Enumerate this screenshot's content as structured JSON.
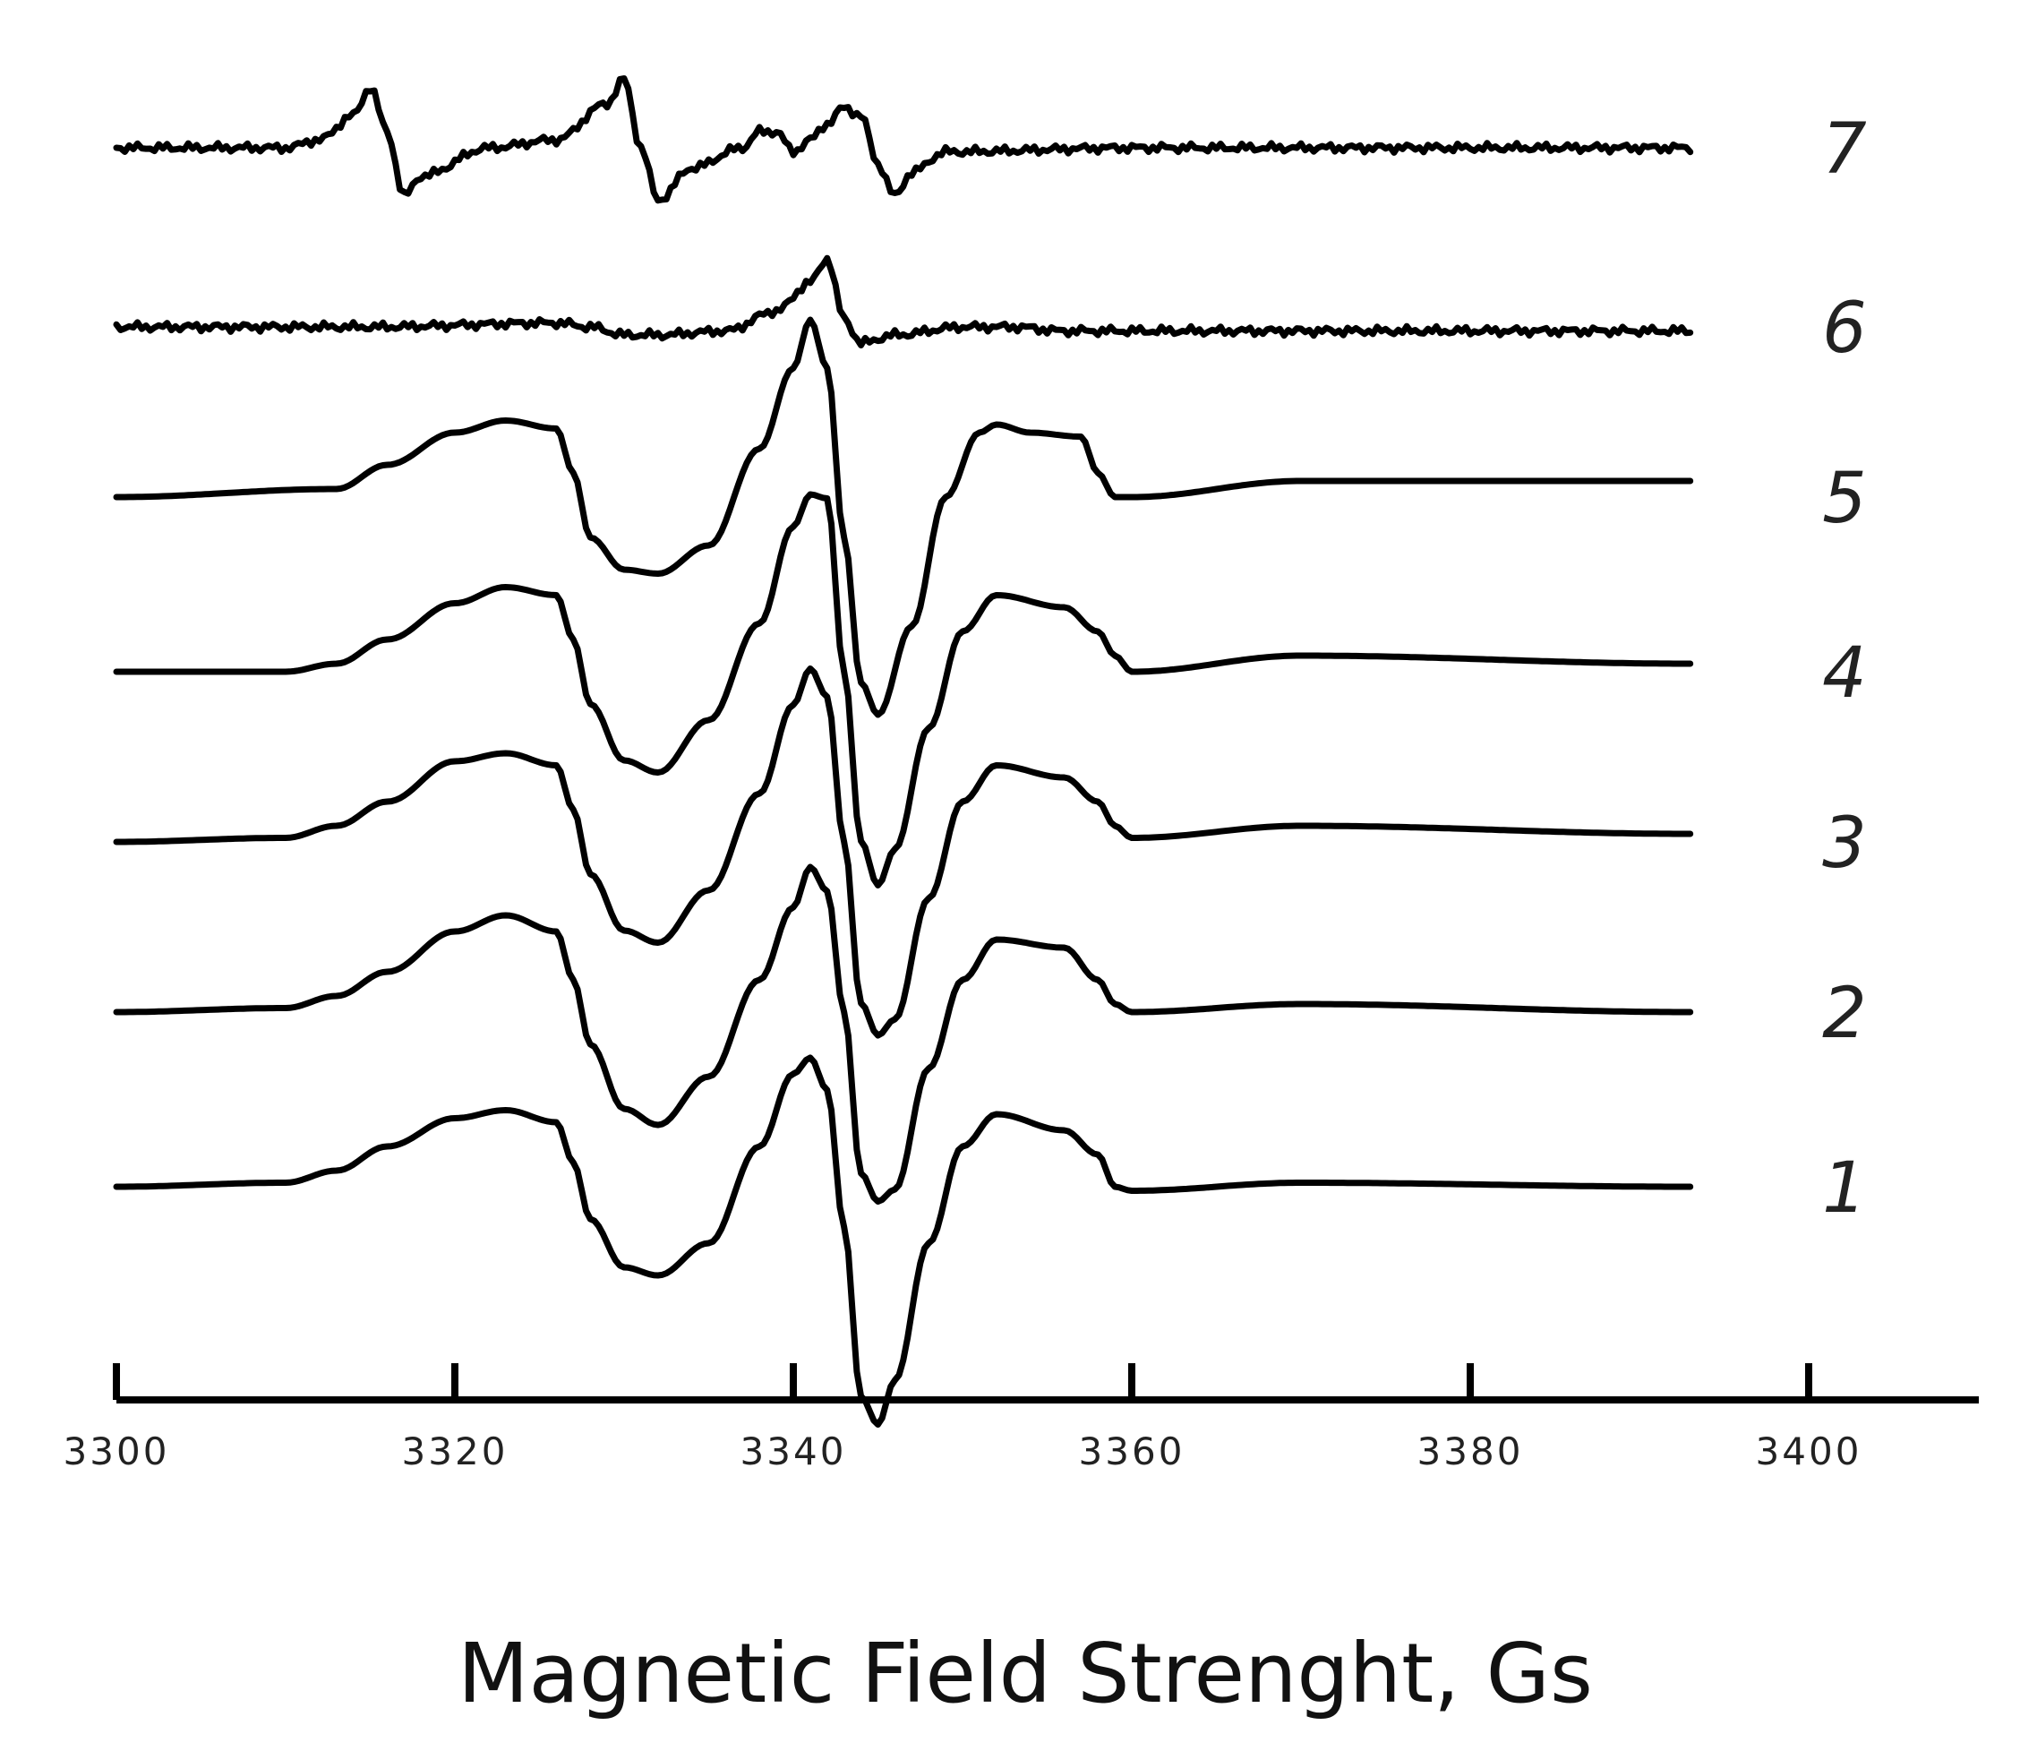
{
  "chart_data": {
    "type": "line",
    "title": "",
    "xlabel": "Magnetic Field Strenght, Gs",
    "ylabel": "",
    "xlim": [
      3300,
      3410
    ],
    "x_ticks": [
      3300,
      3320,
      3340,
      3360,
      3380,
      3400
    ],
    "x_tick_labels": [
      "3300",
      "3320",
      "3340",
      "3360",
      "3380",
      "3400"
    ],
    "grid": false,
    "legend": "inline labels at right end of each trace",
    "y_units": "arbitrary (stacked, offset traces)",
    "series": [
      {
        "name": "7",
        "x": [
          3300,
          3310,
          3312,
          3314,
          3315,
          3316,
          3317,
          3318,
          3322,
          3326,
          3329,
          3330,
          3331,
          3332,
          3334,
          3337,
          3338,
          3339,
          3340,
          3341,
          3342,
          3343,
          3344,
          3345,
          3346,
          3347,
          3349,
          3360,
          3380,
          3393
        ],
        "y": [
          0.0,
          0.0,
          0.1,
          0.4,
          0.75,
          0.2,
          -0.6,
          -0.35,
          0.0,
          0.1,
          0.55,
          0.85,
          0.0,
          -0.65,
          -0.25,
          0.0,
          0.2,
          0.2,
          -0.05,
          0.1,
          0.3,
          0.5,
          0.4,
          -0.2,
          -0.6,
          -0.3,
          -0.05,
          0.0,
          0.0,
          0.0
        ]
      },
      {
        "name": "6",
        "x": [
          3300,
          3315,
          3326,
          3328,
          3330,
          3332,
          3336,
          3339,
          3341,
          3342,
          3343,
          3344,
          3346,
          3350,
          3353,
          3356,
          3360,
          3393
        ],
        "y": [
          0.0,
          0.0,
          0.05,
          0.0,
          -0.1,
          -0.1,
          -0.05,
          0.2,
          0.55,
          0.85,
          0.1,
          -0.2,
          -0.1,
          0.0,
          0.0,
          -0.05,
          -0.05,
          -0.05
        ]
      },
      {
        "name": "5",
        "x": [
          3300,
          3313,
          3316,
          3320,
          3323,
          3326,
          3327,
          3328,
          3330,
          3332,
          3335,
          3338,
          3340,
          3341,
          3342,
          3343,
          3344,
          3345,
          3347,
          3349,
          3351,
          3352,
          3354,
          3357,
          3358,
          3359,
          3360,
          3370,
          3393
        ],
        "y": [
          0.0,
          0.1,
          0.4,
          0.8,
          0.95,
          0.85,
          0.3,
          -0.5,
          -0.9,
          -0.95,
          -0.6,
          0.6,
          1.6,
          2.2,
          1.6,
          -0.5,
          -2.3,
          -2.7,
          -1.6,
          0.0,
          0.8,
          0.9,
          0.8,
          0.75,
          0.3,
          0.0,
          0.0,
          0.2,
          0.2
        ]
      },
      {
        "name": "4",
        "x": [
          3300,
          3310,
          3313,
          3316,
          3320,
          3323,
          3326,
          3327,
          3328,
          3330,
          3332,
          3335,
          3338,
          3340,
          3341,
          3342,
          3343,
          3344,
          3345,
          3346,
          3348,
          3350,
          3352,
          3356,
          3358,
          3359,
          3360,
          3370,
          3393
        ],
        "y": [
          0.0,
          0.0,
          0.1,
          0.4,
          0.85,
          1.05,
          0.95,
          0.4,
          -0.4,
          -1.1,
          -1.25,
          -0.6,
          0.6,
          1.8,
          2.2,
          2.15,
          0.0,
          -2.1,
          -2.65,
          -2.2,
          -0.7,
          0.5,
          0.95,
          0.8,
          0.5,
          0.2,
          0.0,
          0.2,
          0.1
        ]
      },
      {
        "name": "3",
        "x": [
          3300,
          3310,
          3313,
          3316,
          3320,
          3323,
          3326,
          3327,
          3328,
          3330,
          3332,
          3335,
          3338,
          3340,
          3341,
          3342,
          3343,
          3344,
          3345,
          3346,
          3348,
          3350,
          3352,
          3356,
          3358,
          3359,
          3360,
          3370,
          3393
        ],
        "y": [
          0.0,
          0.05,
          0.2,
          0.5,
          1.0,
          1.1,
          0.95,
          0.4,
          -0.4,
          -1.1,
          -1.25,
          -0.6,
          0.6,
          1.7,
          2.15,
          1.8,
          0.0,
          -2.0,
          -2.4,
          -2.2,
          -0.7,
          0.5,
          0.95,
          0.8,
          0.5,
          0.2,
          0.05,
          0.2,
          0.1
        ]
      },
      {
        "name": "2",
        "x": [
          3300,
          3310,
          3313,
          3316,
          3320,
          3323,
          3326,
          3327,
          3328,
          3330,
          3332,
          3335,
          3338,
          3340,
          3341,
          3342,
          3343,
          3344,
          3345,
          3346,
          3348,
          3350,
          3352,
          3356,
          3358,
          3359,
          3360,
          3370,
          3393
        ],
        "y": [
          0.0,
          0.05,
          0.2,
          0.5,
          1.0,
          1.2,
          1.0,
          0.4,
          -0.4,
          -1.2,
          -1.4,
          -0.8,
          0.4,
          1.3,
          1.8,
          1.5,
          0.0,
          -2.0,
          -2.35,
          -2.2,
          -0.7,
          0.4,
          0.9,
          0.8,
          0.4,
          0.1,
          0.0,
          0.1,
          0.0
        ]
      },
      {
        "name": "1",
        "x": [
          3300,
          3310,
          3313,
          3316,
          3320,
          3323,
          3326,
          3327,
          3328,
          3330,
          3332,
          3335,
          3338,
          3340,
          3341,
          3342,
          3343,
          3344,
          3345,
          3346,
          3348,
          3350,
          3352,
          3356,
          3358,
          3359,
          3360,
          3370,
          3393
        ],
        "y": [
          0.0,
          0.05,
          0.2,
          0.5,
          0.85,
          0.95,
          0.8,
          0.3,
          -0.4,
          -1.0,
          -1.1,
          -0.7,
          0.5,
          1.4,
          1.6,
          1.2,
          -0.5,
          -2.6,
          -2.95,
          -2.4,
          -0.7,
          0.5,
          0.9,
          0.7,
          0.4,
          0.0,
          -0.05,
          0.05,
          0.0
        ]
      }
    ]
  }
}
